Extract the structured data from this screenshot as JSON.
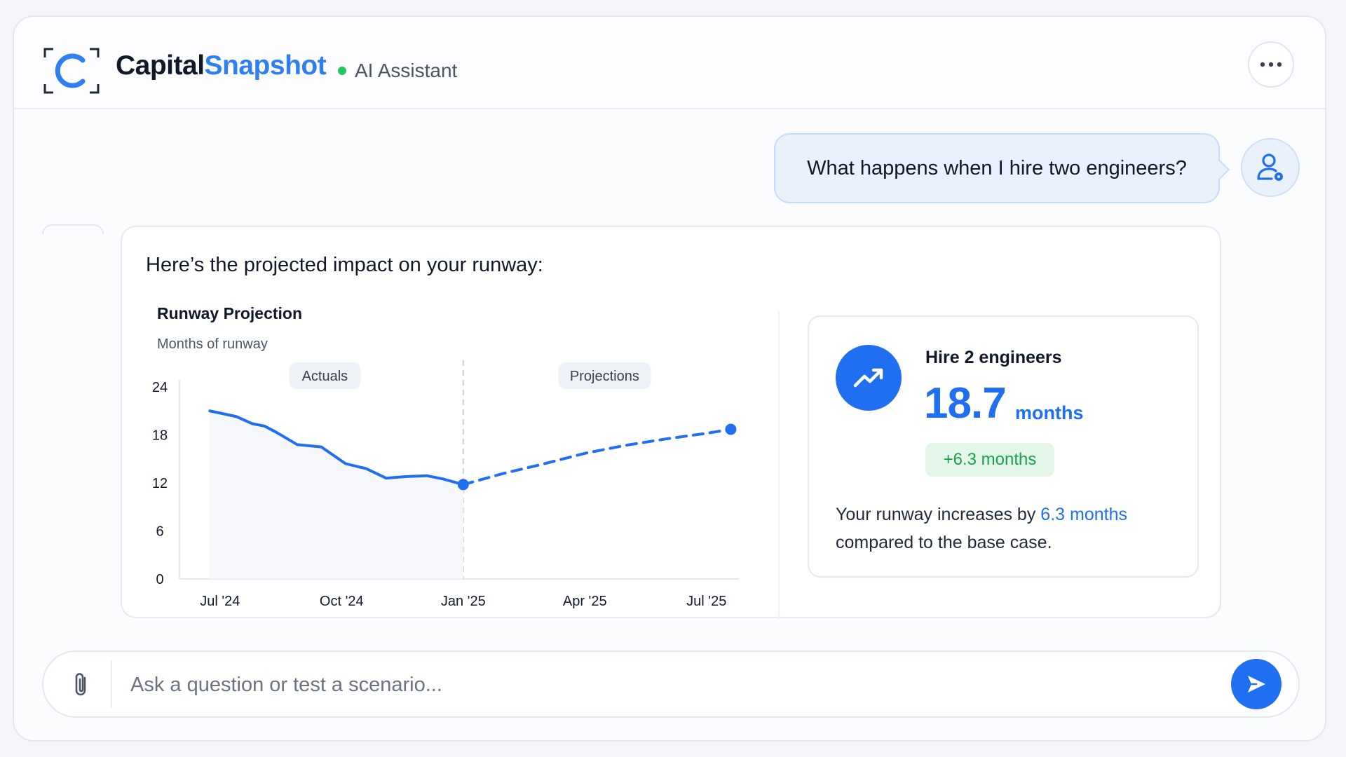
{
  "app": {
    "brand_part1": "Capital",
    "brand_part2": "Snapshot",
    "status_label": "AI Assistant"
  },
  "icons": {
    "logo": "capitalsnapshot-logo-icon",
    "more": "more-horizontal-icon",
    "user": "user-avatar-icon",
    "trend": "trending-up-icon",
    "attach": "paperclip-icon",
    "send": "send-icon"
  },
  "colors": {
    "accent": "#1f6ff0",
    "brand_blue": "#2f7ff0",
    "status_green": "#22c55e",
    "positive_green": "#16a34a"
  },
  "user_message": {
    "text": "What happens when I hire two engineers?"
  },
  "assistant": {
    "intro": "Here’s the projected impact on your runway:"
  },
  "chart_data": {
    "type": "line",
    "title": "Runway Projection",
    "ylabel": "Months of runway",
    "xlabel": "",
    "ylim": [
      0,
      24
    ],
    "yticks": [
      0,
      6,
      12,
      18,
      24
    ],
    "xticks": [
      "Jul '24",
      "Oct '24",
      "Jan '25",
      "Apr '25",
      "Jul '25"
    ],
    "grid": false,
    "annotations": [
      "Actuals",
      "Projections"
    ],
    "split_at_month": 6,
    "series": [
      {
        "style": "solid",
        "x": [
          -0.25,
          0.4,
          0.8,
          1.1,
          1.4,
          1.9,
          2.5,
          3.1,
          3.6,
          4.1,
          4.6,
          5.1,
          5.5,
          6.0
        ],
        "y": [
          21,
          20.3,
          19.4,
          19.1,
          18.3,
          16.8,
          16.5,
          14.4,
          13.8,
          12.6,
          12.8,
          12.9,
          12.5,
          11.8
        ]
      },
      {
        "style": "dashed",
        "x": [
          6.0,
          7.0,
          8.0,
          9.0,
          10.0,
          11.0,
          12.0,
          12.6
        ],
        "y": [
          11.8,
          13.2,
          14.4,
          15.7,
          16.7,
          17.5,
          18.2,
          18.7
        ]
      }
    ]
  },
  "impact": {
    "title": "Hire 2 engineers",
    "value": "18.7",
    "unit": "months",
    "delta": "+6.3 months",
    "desc_before": "Your runway increases by ",
    "desc_highlight": "6.3 months",
    "desc_after": " compared to the base case."
  },
  "composer": {
    "placeholder": "Ask a question or test a scenario...",
    "value": ""
  }
}
